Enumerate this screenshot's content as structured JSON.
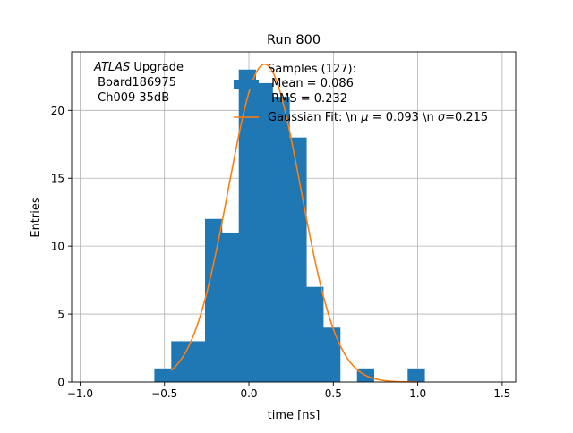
{
  "chart_data": {
    "type": "bar",
    "title": "Run 800",
    "xlabel": "time [ns]",
    "ylabel": "Entries",
    "xlim": [
      -1.05,
      1.58
    ],
    "ylim": [
      0,
      24.3
    ],
    "grid": true,
    "x_ticks": [
      -1.0,
      -0.5,
      0.0,
      0.5,
      1.0,
      1.5
    ],
    "x_tick_labels": [
      "−1.0",
      "−0.5",
      "0.0",
      "0.5",
      "1.0",
      "1.5"
    ],
    "y_ticks": [
      0,
      5,
      10,
      15,
      20
    ],
    "y_tick_labels": [
      "0",
      "5",
      "10",
      "15",
      "20"
    ],
    "bin_width": 0.1,
    "bins": [
      {
        "x0": -0.56,
        "value": 1
      },
      {
        "x0": -0.46,
        "value": 3
      },
      {
        "x0": -0.36,
        "value": 3
      },
      {
        "x0": -0.26,
        "value": 12
      },
      {
        "x0": -0.16,
        "value": 11
      },
      {
        "x0": -0.06,
        "value": 23
      },
      {
        "x0": 0.04,
        "value": 22
      },
      {
        "x0": 0.14,
        "value": 21
      },
      {
        "x0": 0.24,
        "value": 18
      },
      {
        "x0": 0.34,
        "value": 7
      },
      {
        "x0": 0.44,
        "value": 4
      },
      {
        "x0": 0.54,
        "value": 0
      },
      {
        "x0": 0.64,
        "value": 1
      },
      {
        "x0": 0.74,
        "value": 0
      },
      {
        "x0": 0.84,
        "value": 0
      },
      {
        "x0": 0.94,
        "value": 1
      }
    ],
    "fit": {
      "mu": 0.093,
      "sigma": 0.215,
      "amplitude": 23.4,
      "x_range": [
        -0.46,
        1.0
      ]
    },
    "colors": {
      "histogram": "#1f77b4",
      "fit": "#ff7f0e",
      "grid": "#b0b0b0"
    },
    "annotation": {
      "line1_italic": "ATLAS",
      "line1_rest": " Upgrade",
      "line2": " Board186975",
      "line3": " Ch009 35dB"
    },
    "legend": {
      "placement": "top-right",
      "hist_line1": "Samples (127):",
      "hist_line2": " Mean = 0.086",
      "hist_line3": " RMS = 0.232",
      "fit_prefix": "Gaussian Fit: \\n ",
      "fit_mu_symbol": "μ",
      "fit_middle": " = 0.093 \\n ",
      "fit_sigma_symbol": "σ",
      "fit_suffix": "=0.215"
    }
  }
}
